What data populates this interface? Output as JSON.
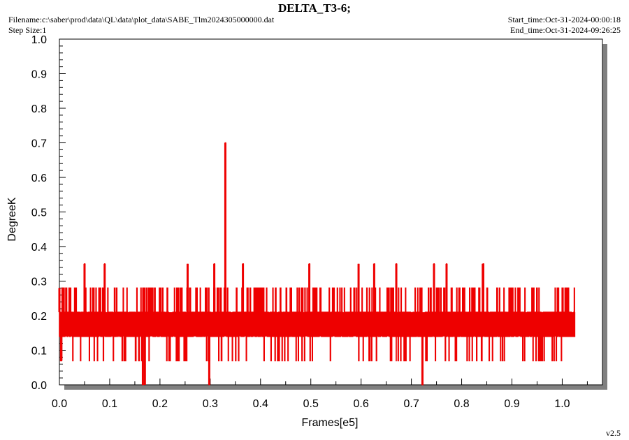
{
  "header": {
    "title": "DELTA_T3-6;",
    "filename": "Filename:c:\\saber\\prod\\data\\QL\\data\\plot_data\\SABE_Tlm2024305000000.dat",
    "step_size": "Step Size:1",
    "start_time": "Start_time:Oct-31-2024-00:00:18",
    "end_time": "End_time:Oct-31-2024-09:26:25"
  },
  "version": "v2.5",
  "colors": {
    "series": "#ee0000",
    "plot_bg": "#ffffff",
    "shadow": "#808080"
  },
  "chart_data": {
    "type": "line",
    "title": "DELTA_T3-6;",
    "xlabel": "Frames[e5]",
    "ylabel": "DegreeK",
    "xlim": [
      0,
      1.08
    ],
    "ylim": [
      0,
      1.0
    ],
    "xticks": [
      "0.0",
      "0.1",
      "0.2",
      "0.3",
      "0.4",
      "0.5",
      "0.6",
      "0.7",
      "0.8",
      "0.9",
      "1.0"
    ],
    "yticks": [
      "0.0",
      "0.1",
      "0.2",
      "0.3",
      "0.4",
      "0.5",
      "0.6",
      "0.7",
      "0.8",
      "0.9",
      "1.0"
    ],
    "grid": false,
    "series": [
      {
        "x_range": [
          0,
          1.026
        ],
        "levels": [
          0.07,
          0.14,
          0.21,
          0.28
        ],
        "band_low": 0.14,
        "band_high": 0.21,
        "spikes": [
          {
            "x": 0.0,
            "y": 0.28
          },
          {
            "x": 0.004,
            "y": 0.07
          },
          {
            "x": 0.05,
            "y": 0.35
          },
          {
            "x": 0.09,
            "y": 0.35
          },
          {
            "x": 0.166,
            "y": 0.0
          },
          {
            "x": 0.17,
            "y": 0.0
          },
          {
            "x": 0.255,
            "y": 0.35
          },
          {
            "x": 0.298,
            "y": 0.0
          },
          {
            "x": 0.308,
            "y": 0.35
          },
          {
            "x": 0.33,
            "y": 0.7
          },
          {
            "x": 0.365,
            "y": 0.35
          },
          {
            "x": 0.497,
            "y": 0.35
          },
          {
            "x": 0.595,
            "y": 0.35
          },
          {
            "x": 0.626,
            "y": 0.35
          },
          {
            "x": 0.67,
            "y": 0.35
          },
          {
            "x": 0.722,
            "y": 0.0
          },
          {
            "x": 0.745,
            "y": 0.35
          },
          {
            "x": 0.77,
            "y": 0.35
          },
          {
            "x": 0.842,
            "y": 0.35
          },
          {
            "x": 0.843,
            "y": 0.35
          }
        ]
      }
    ]
  }
}
